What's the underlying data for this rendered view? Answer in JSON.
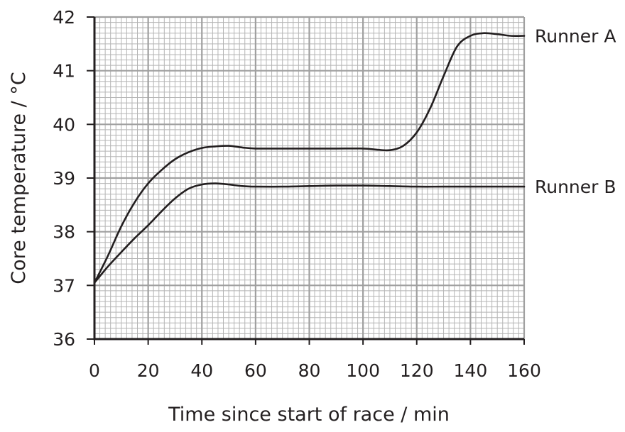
{
  "chart_data": {
    "type": "line",
    "title": "",
    "xlabel": "Time since start of race / min",
    "ylabel": "Core temperature / °C",
    "xlim": [
      0,
      160
    ],
    "ylim": [
      36,
      42
    ],
    "x_ticks": [
      "0",
      "20",
      "40",
      "60",
      "80",
      "100",
      "120",
      "140",
      "160"
    ],
    "y_ticks": [
      "36",
      "37",
      "38",
      "39",
      "40",
      "41",
      "42"
    ],
    "grid": true,
    "legend": "labels at right end of each line",
    "series": [
      {
        "name": "Runner A",
        "x": [
          0,
          5,
          10,
          15,
          20,
          25,
          30,
          35,
          40,
          45,
          50,
          55,
          60,
          70,
          80,
          90,
          100,
          105,
          110,
          115,
          120,
          125,
          130,
          135,
          140,
          145,
          150,
          155,
          160
        ],
        "y": [
          37.05,
          37.55,
          38.1,
          38.55,
          38.9,
          39.15,
          39.35,
          39.48,
          39.56,
          39.59,
          39.6,
          39.57,
          39.55,
          39.55,
          39.55,
          39.55,
          39.55,
          39.53,
          39.52,
          39.6,
          39.85,
          40.3,
          40.9,
          41.45,
          41.65,
          41.7,
          41.68,
          41.65,
          41.65
        ]
      },
      {
        "name": "Runner B",
        "x": [
          0,
          5,
          10,
          15,
          20,
          25,
          30,
          35,
          40,
          45,
          50,
          55,
          60,
          70,
          80,
          90,
          100,
          110,
          120,
          130,
          140,
          150,
          160
        ],
        "y": [
          37.05,
          37.35,
          37.62,
          37.88,
          38.12,
          38.38,
          38.62,
          38.8,
          38.88,
          38.9,
          38.88,
          38.85,
          38.84,
          38.84,
          38.85,
          38.86,
          38.86,
          38.85,
          38.84,
          38.84,
          38.84,
          38.84,
          38.84
        ]
      }
    ]
  }
}
